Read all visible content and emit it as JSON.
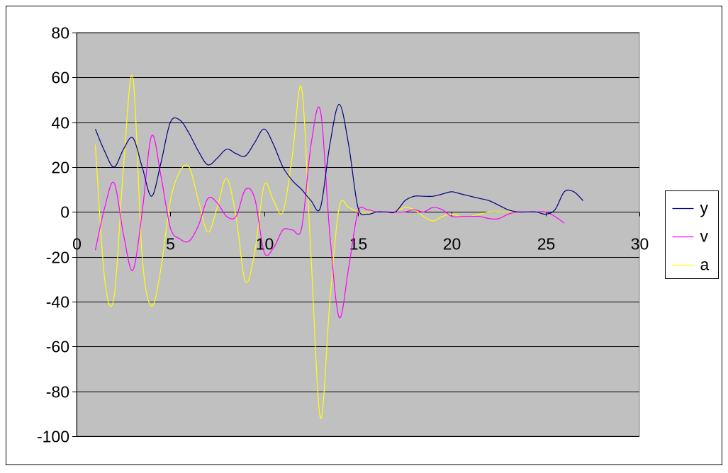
{
  "chart_data": {
    "type": "line",
    "title": "",
    "xlabel": "",
    "ylabel": "",
    "xlim": [
      0,
      30
    ],
    "ylim": [
      -100,
      80
    ],
    "x_ticks": [
      0,
      5,
      10,
      15,
      20,
      25,
      30
    ],
    "y_ticks": [
      80,
      60,
      40,
      20,
      0,
      -20,
      -40,
      -60,
      -80,
      -100
    ],
    "x_tick_labels": [
      "0",
      "5",
      "10",
      "15",
      "20",
      "25",
      "30"
    ],
    "y_tick_labels": [
      "80",
      "60",
      "40",
      "20",
      "0",
      "-20",
      "-40",
      "-60",
      "-80",
      "-100"
    ],
    "grid": "horizontal",
    "plot_background": "#c0c0c0",
    "legend_position": "right",
    "series": [
      {
        "name": "y",
        "color": "#000080",
        "x": [
          1,
          1.5,
          2,
          2.5,
          3,
          3.5,
          4,
          4.5,
          5,
          5.5,
          6,
          6.5,
          7,
          7.5,
          8,
          8.5,
          9,
          9.5,
          10,
          10.5,
          11,
          11.5,
          12,
          12.5,
          13,
          13.5,
          14,
          14.5,
          15,
          15.5,
          16,
          16.5,
          17,
          17.5,
          18,
          18.5,
          19,
          19.5,
          20,
          20.5,
          21,
          21.5,
          22,
          22.5,
          23,
          23.5,
          24,
          24.5,
          25,
          25.5,
          26,
          26.5,
          27
        ],
        "values": [
          37,
          27,
          20,
          28,
          33,
          20,
          7,
          22,
          40,
          41,
          35,
          27,
          21,
          24,
          28,
          26,
          25,
          31,
          37,
          30,
          20,
          14,
          10,
          5,
          2,
          30,
          48,
          30,
          2,
          -1,
          0,
          0,
          0,
          5,
          7,
          7,
          7,
          8,
          9,
          8,
          7,
          6,
          5,
          3,
          1,
          0,
          0,
          0,
          -1,
          1,
          9,
          9,
          5
        ]
      },
      {
        "name": "v",
        "color": "#ff00ff",
        "x": [
          1,
          1.5,
          2,
          2.5,
          3,
          3.5,
          4,
          4.5,
          5,
          5.5,
          6,
          6.5,
          7,
          7.5,
          8,
          8.5,
          9,
          9.5,
          10,
          10.5,
          11,
          11.5,
          12,
          12.5,
          13,
          13.5,
          14,
          14.5,
          15,
          15.5,
          16,
          16.5,
          17,
          17.5,
          18,
          18.5,
          19,
          19.5,
          20,
          20.5,
          21,
          21.5,
          22,
          22.5,
          23,
          23.5,
          24,
          24.5,
          25,
          25.5,
          26
        ],
        "values": [
          -17,
          2,
          13,
          -10,
          -26,
          0,
          34,
          16,
          -7,
          -12,
          -13,
          -6,
          6,
          4,
          -2,
          -2,
          10,
          6,
          -18,
          -16,
          -8,
          -8,
          -7,
          30,
          45,
          -10,
          -47,
          -25,
          0,
          1,
          0,
          0,
          0,
          0,
          1,
          0,
          2,
          1,
          -2,
          -2,
          -2,
          -2,
          -3,
          -3,
          -1,
          0,
          0,
          0,
          0,
          -2,
          -5
        ]
      },
      {
        "name": "a",
        "color": "#ffff00",
        "x": [
          1,
          1.5,
          2,
          2.5,
          3,
          3.5,
          4,
          4.5,
          5,
          5.5,
          6,
          6.5,
          7,
          7.5,
          8,
          8.5,
          9,
          9.5,
          10,
          10.5,
          11,
          11.5,
          12,
          12.5,
          13,
          13.5,
          14,
          14.5,
          15,
          15.5,
          16,
          16.5,
          17,
          17.5,
          18,
          18.5,
          19,
          19.5,
          20,
          20.5,
          21,
          21.5,
          22,
          22.5,
          23,
          23.5,
          24,
          24.5,
          25
        ],
        "values": [
          30,
          -30,
          -38,
          20,
          60,
          -20,
          -42,
          -25,
          5,
          18,
          20,
          5,
          -9,
          2,
          15,
          -2,
          -31,
          -18,
          12,
          5,
          0,
          25,
          55,
          -20,
          -92,
          -40,
          2,
          2,
          0,
          0,
          0,
          0,
          0,
          2,
          1,
          -2,
          -4,
          -2,
          -1,
          -2,
          -2,
          -1,
          0,
          0,
          0,
          0,
          0,
          0,
          0
        ]
      }
    ]
  }
}
